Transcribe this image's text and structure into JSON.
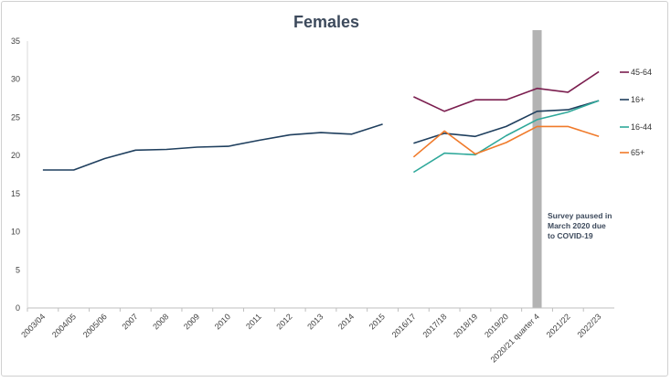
{
  "chart_data": {
    "type": "line",
    "title": "Females",
    "ylim": [
      0,
      35
    ],
    "yticks": [
      0,
      5,
      10,
      15,
      20,
      25,
      30,
      35
    ],
    "categories": [
      "2003/04",
      "2004/05",
      "2005/06",
      "2007",
      "2008",
      "2009",
      "2010",
      "2011",
      "2012",
      "2013",
      "2014",
      "2015",
      "2016/17",
      "2017/18",
      "2018/19",
      "2019/20",
      "2020/21 quarter 4",
      "2021/22",
      "2022/23"
    ],
    "series": [
      {
        "name": "45-64",
        "color": "#7b1e4f",
        "values": [
          null,
          null,
          null,
          null,
          null,
          null,
          null,
          null,
          null,
          null,
          null,
          null,
          27.7,
          25.8,
          27.3,
          27.3,
          28.8,
          28.3,
          31.0
        ]
      },
      {
        "name": "16+",
        "color": "#1f3f5e",
        "values": [
          18.1,
          18.1,
          19.6,
          20.7,
          20.8,
          21.1,
          21.2,
          22.0,
          22.7,
          23.0,
          22.8,
          24.1,
          null,
          null,
          null,
          null,
          null,
          null,
          null
        ]
      },
      {
        "name": "16+",
        "color": "#1f3f5e",
        "legend": false,
        "values": [
          null,
          null,
          null,
          null,
          null,
          null,
          null,
          null,
          null,
          null,
          null,
          null,
          21.6,
          22.9,
          22.5,
          23.8,
          25.8,
          26.0,
          27.2
        ]
      },
      {
        "name": "16-44",
        "color": "#2fa89a",
        "values": [
          null,
          null,
          null,
          null,
          null,
          null,
          null,
          null,
          null,
          null,
          null,
          null,
          17.8,
          20.3,
          20.1,
          22.6,
          24.7,
          25.7,
          27.2
        ]
      },
      {
        "name": "65+",
        "color": "#f07a2a",
        "values": [
          null,
          null,
          null,
          null,
          null,
          null,
          null,
          null,
          null,
          null,
          null,
          null,
          19.8,
          23.2,
          20.2,
          21.7,
          23.8,
          23.8,
          22.5
        ]
      }
    ],
    "annotation": {
      "text_lines": [
        "Survey paused in",
        "March 2020 due",
        "to COVID-19"
      ],
      "band_color": "#b3b3b3",
      "at_index": 16
    },
    "grid": false,
    "legend": "right"
  }
}
